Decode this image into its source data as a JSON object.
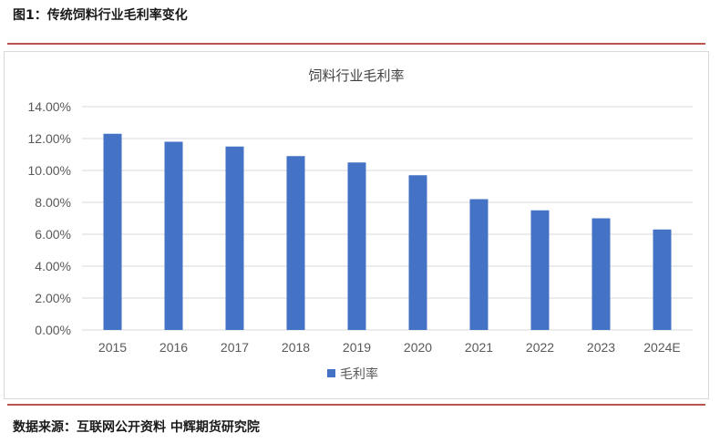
{
  "figure_title": "图1：传统饲料行业毛利率变化",
  "source_note": "数据来源：互联网公开资料  中辉期货研究院",
  "colors": {
    "bar": "#4472c4",
    "rule": "#b8554f",
    "grid": "#d9d9d9",
    "text": "#595959"
  },
  "chart_data": {
    "type": "bar",
    "title": "饲料行业毛利率",
    "xlabel": "",
    "ylabel": "",
    "categories": [
      "2015",
      "2016",
      "2017",
      "2018",
      "2019",
      "2020",
      "2021",
      "2022",
      "2023",
      "2024E"
    ],
    "series": [
      {
        "name": "毛利率",
        "values": [
          12.3,
          11.8,
          11.5,
          10.9,
          10.5,
          9.7,
          8.2,
          7.5,
          7.0,
          6.3
        ]
      }
    ],
    "ylim": [
      0,
      14
    ],
    "yticks": [
      0,
      2,
      4,
      6,
      8,
      10,
      12,
      14
    ],
    "ytick_labels": [
      "0.00%",
      "2.00%",
      "4.00%",
      "6.00%",
      "8.00%",
      "10.00%",
      "12.00%",
      "14.00%"
    ],
    "grid": true,
    "legend_position": "bottom"
  }
}
